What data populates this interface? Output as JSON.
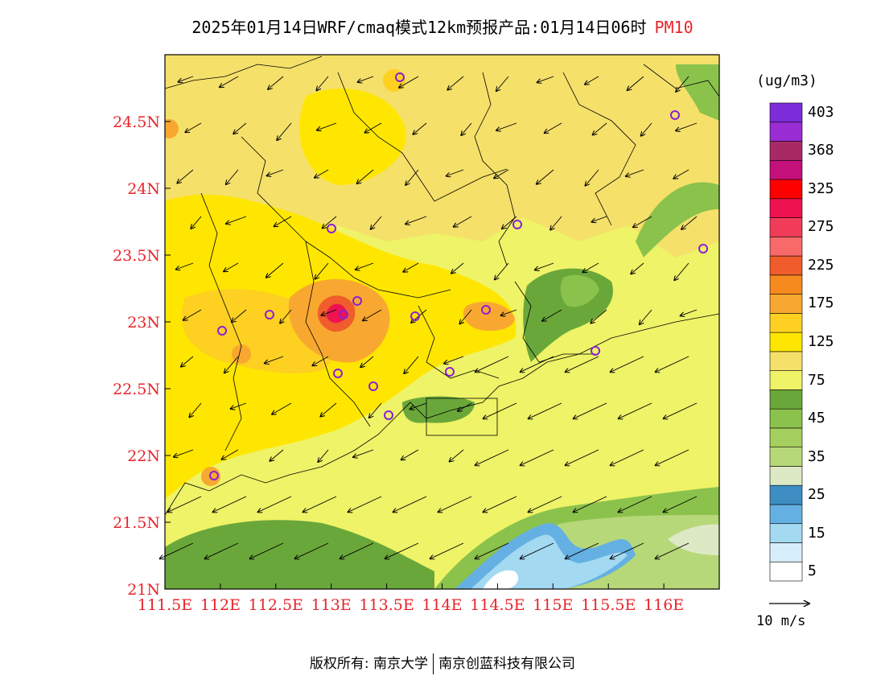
{
  "title": {
    "text": "2025年01月14日WRF/cmaq模式12km预报产品:01月14日06时",
    "pollutant": "PM10"
  },
  "map": {
    "lon_ticks": [
      "111.5E",
      "112E",
      "112.5E",
      "113E",
      "113.5E",
      "114E",
      "114.5E",
      "115E",
      "115.5E",
      "116E"
    ],
    "lat_ticks": [
      "21N",
      "21.5N",
      "22N",
      "22.5N",
      "23N",
      "23.5N",
      "24N",
      "24.5N"
    ],
    "lon_range": [
      111.5,
      116.5
    ],
    "lat_range": [
      21.0,
      25.0
    ],
    "axis_label_color": "#e8242a",
    "wind_direction": "north-easterly"
  },
  "colorbar": {
    "unit": "(ug/m3)",
    "labels": [
      "5",
      "15",
      "25",
      "35",
      "45",
      "75",
      "125",
      "175",
      "225",
      "275",
      "325",
      "368",
      "403"
    ],
    "colors": [
      "#ffffff",
      "#d6eef9",
      "#a4d9f2",
      "#64b0e2",
      "#3e8ec4",
      "#dde9c4",
      "#b7d879",
      "#a5cf5e",
      "#8bc24c",
      "#6aa73a",
      "#eef367",
      "#f5e06a",
      "#ffe600",
      "#fdd022",
      "#f8a830",
      "#f68a1e",
      "#f05c2c",
      "#f86a6a",
      "#f03c58",
      "#ee1250",
      "#ff0000",
      "#c4107a",
      "#a82a64",
      "#9a2cd4",
      "#7c2cd8"
    ]
  },
  "wind_reference": {
    "label": "10 m/s"
  },
  "credits": {
    "left": "版权所有: 南京大学",
    "right": "南京创蓝科技有限公司"
  }
}
